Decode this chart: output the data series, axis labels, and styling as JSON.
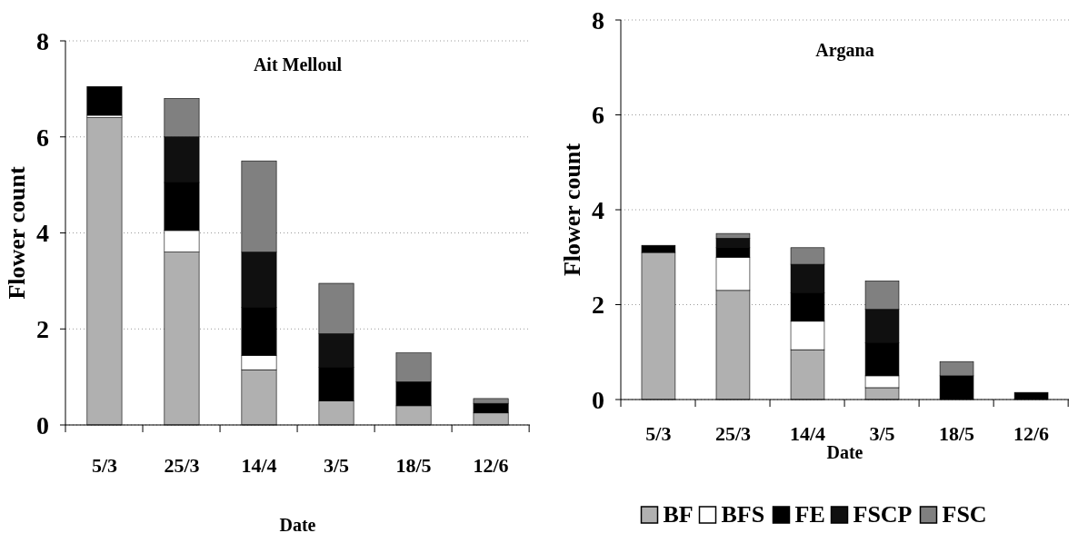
{
  "chart_data": [
    {
      "type": "bar",
      "stacked": true,
      "title": "Ait Melloul",
      "xlabel": "Date",
      "ylabel": "Flower count",
      "categories": [
        "5/3",
        "25/3",
        "14/4",
        "3/5",
        "18/5",
        "12/6"
      ],
      "ylim": [
        0,
        8
      ],
      "yticks": [
        0,
        2,
        4,
        6,
        8
      ],
      "grid": "y",
      "legend": false,
      "series": [
        {
          "color": "#b0b0b0",
          "values": [
            6.4,
            3.6,
            1.15,
            0.5,
            0.4,
            0.25
          ]
        },
        {
          "color": "#ffffff",
          "values": [
            0.05,
            0.45,
            0.3,
            0,
            0,
            0
          ]
        },
        {
          "color": "#000000",
          "values": [
            0.6,
            1.0,
            1.0,
            0.7,
            0.5,
            0.2
          ]
        },
        {
          "color": "#101010",
          "values": [
            0,
            0.95,
            1.15,
            0.7,
            0,
            0
          ]
        },
        {
          "color": "#808080",
          "values": [
            0,
            0.8,
            1.9,
            1.05,
            0.6,
            0.1
          ]
        }
      ]
    },
    {
      "type": "bar",
      "stacked": true,
      "title": "Argana",
      "xlabel": "Date",
      "ylabel": "Flower count",
      "categories": [
        "5/3",
        "25/3",
        "14/4",
        "3/5",
        "18/5",
        "12/6"
      ],
      "ylim": [
        0,
        8
      ],
      "yticks": [
        0,
        2,
        4,
        6,
        8
      ],
      "grid": "y",
      "legend": "bottom",
      "series": [
        {
          "name": "BF",
          "color": "#b0b0b0",
          "values": [
            3.1,
            2.3,
            1.05,
            0.25,
            0,
            0
          ]
        },
        {
          "name": "BFS",
          "color": "#ffffff",
          "values": [
            0,
            0.7,
            0.6,
            0.25,
            0,
            0
          ]
        },
        {
          "name": "FE",
          "color": "#000000",
          "values": [
            0.15,
            0.2,
            0.6,
            0.7,
            0.5,
            0.15
          ]
        },
        {
          "name": "FSCP",
          "color": "#101010",
          "values": [
            0,
            0.2,
            0.6,
            0.7,
            0,
            0
          ]
        },
        {
          "name": "FSC",
          "color": "#808080",
          "values": [
            0,
            0.1,
            0.35,
            0.6,
            0.3,
            0
          ]
        }
      ]
    }
  ]
}
